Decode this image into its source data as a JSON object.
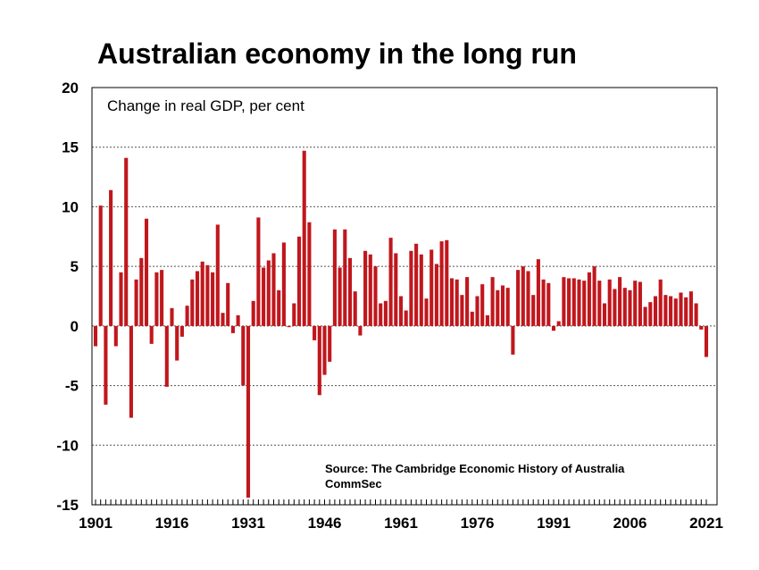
{
  "chart_data": {
    "type": "bar",
    "title": "Australian economy in the long run",
    "subtitle": "Change in real GDP, per cent",
    "source_lines": [
      "Source: The Cambridge Economic History of Australia",
      "CommSec"
    ],
    "x_start": 1901,
    "x_end": 2021,
    "x_tick_labels": [
      "1901",
      "1916",
      "1931",
      "1946",
      "1961",
      "1976",
      "1991",
      "2006",
      "2021"
    ],
    "ylim": [
      -15,
      20
    ],
    "y_ticks": [
      -15,
      -10,
      -5,
      0,
      5,
      10,
      15,
      20
    ],
    "grid": "horizontal-dashed",
    "bar_color": "#C0171D",
    "values": [
      -1.7,
      10.1,
      -6.6,
      11.4,
      -1.7,
      4.5,
      14.1,
      -7.7,
      3.9,
      5.7,
      9.0,
      -1.5,
      4.5,
      4.7,
      -5.1,
      1.5,
      -2.9,
      -0.9,
      1.7,
      3.9,
      4.6,
      5.4,
      5.1,
      4.5,
      8.5,
      1.1,
      3.6,
      -0.6,
      0.9,
      -5.0,
      -14.4,
      2.1,
      9.1,
      4.9,
      5.5,
      6.1,
      3.0,
      7.0,
      -0.1,
      1.9,
      7.5,
      14.7,
      8.7,
      -1.2,
      -5.8,
      -4.1,
      -3.0,
      8.1,
      4.9,
      8.1,
      5.7,
      2.9,
      -0.8,
      6.3,
      6.0,
      5.0,
      1.9,
      2.1,
      7.4,
      6.1,
      2.5,
      1.3,
      6.3,
      6.9,
      6.0,
      2.3,
      6.4,
      5.2,
      7.1,
      7.2,
      4.0,
      3.9,
      2.6,
      4.1,
      1.2,
      2.5,
      3.5,
      0.9,
      4.1,
      3.0,
      3.4,
      3.2,
      -2.4,
      4.7,
      5.0,
      4.6,
      2.6,
      5.6,
      3.9,
      3.6,
      -0.4,
      0.4,
      4.1,
      4.0,
      4.0,
      3.9,
      3.8,
      4.5,
      5.0,
      3.8,
      1.9,
      3.9,
      3.1,
      4.1,
      3.2,
      3.0,
      3.8,
      3.7,
      1.6,
      2.0,
      2.5,
      3.9,
      2.6,
      2.5,
      2.3,
      2.8,
      2.4,
      2.9,
      1.9,
      -0.3,
      -2.6
    ]
  }
}
